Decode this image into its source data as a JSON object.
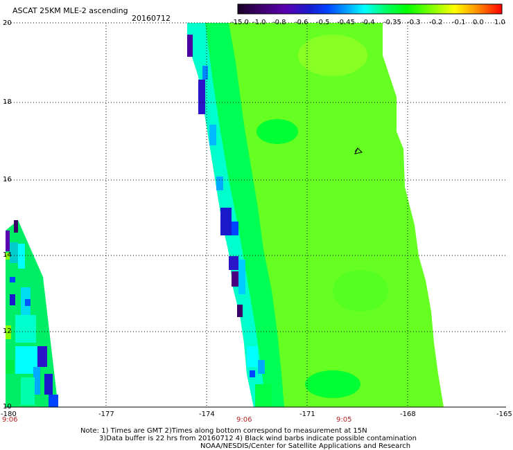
{
  "header": {
    "title": "ASCAT 25KM MLE-2 ascending",
    "date": "20160712"
  },
  "map": {
    "lon_range": [
      -180,
      -165
    ],
    "lat_range": [
      10,
      20
    ],
    "lat_ticks": [
      "20",
      "18",
      "16",
      "14",
      "12",
      "10"
    ],
    "lon_ticks": [
      "-180",
      "-177",
      "-174",
      "-171",
      "-168",
      "-165"
    ],
    "times": [
      {
        "label": "9:06",
        "lon": -180
      },
      {
        "label": "9:06",
        "lon": -173
      },
      {
        "label": "9:05",
        "lon": -170
      }
    ],
    "wind_barb_marker": {
      "lon": -169.7,
      "lat": 16.7
    }
  },
  "colorbar": {
    "labels": [
      "-15.0",
      "-1.0",
      "-0.8",
      "-0.6",
      "-0.5",
      "-0.45",
      "-0.4",
      "-0.35",
      "-0.3",
      "-0.2",
      "-0.1",
      "0.0",
      "1.0"
    ],
    "colors": [
      "#1a0026",
      "#3a0066",
      "#5a00a8",
      "#2a16c8",
      "#0033ff",
      "#0077ff",
      "#00b8ff",
      "#00ffff",
      "#00ff88",
      "#00ff00",
      "#7fff00",
      "#ffff00",
      "#ffcc00",
      "#ff8800",
      "#ff3300",
      "#ff0000"
    ]
  },
  "notes": {
    "line1": "Note: 1) Times are GMT 2)Times along bottom correspond to measurement at 15N",
    "line2": "3)Data buffer is 22 hrs from 20160712 4) Black wind barbs indicate possible contamination",
    "line3": "NOAA/NESDIS/Center for Satellite Applications and Research"
  }
}
